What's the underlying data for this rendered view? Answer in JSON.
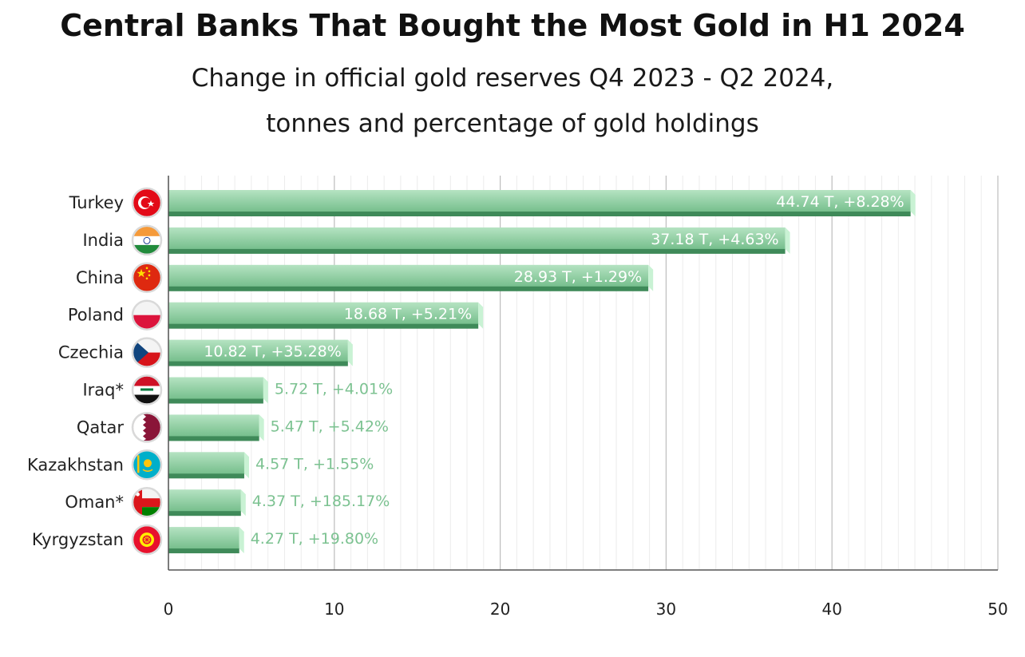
{
  "chart_data": {
    "type": "bar",
    "orientation": "horizontal",
    "title": "Central Banks That Bought the Most Gold in H1 2024",
    "subtitle_lines": [
      "Change in official gold reserves Q4 2023 - Q2 2024,",
      "tonnes and percentage of gold holdings"
    ],
    "categories": [
      "Turkey",
      "India",
      "China",
      "Poland",
      "Czechia",
      "Iraq*",
      "Qatar",
      "Kazakhstan",
      "Oman*",
      "Kyrgyzstan"
    ],
    "values": [
      44.74,
      37.18,
      28.93,
      18.68,
      10.82,
      5.72,
      5.47,
      4.57,
      4.37,
      4.27
    ],
    "data_labels": [
      "44.74 T, +8.28%",
      "37.18 T, +4.63%",
      "28.93 T, +1.29%",
      "18.68 T, +5.21%",
      "10.82 T, +35.28%",
      "5.72 T, +4.01%",
      "5.47 T, +5.42%",
      "4.57 T, +1.55%",
      "4.37 T, +185.17%",
      "4.27 T, +19.80%"
    ],
    "x_ticks": [
      0,
      10,
      20,
      30,
      40,
      50
    ],
    "xlim": [
      0,
      50
    ],
    "grid": true,
    "legend": "none",
    "colors": {
      "bar_top": "#a7dcb6",
      "bar_bottom": "#78c08e",
      "bar_edge": "#3f8a59",
      "bar_side": "#c9f2d4",
      "label_inside": "#ffffff",
      "label_outside": "#7cc291"
    },
    "flags": [
      {
        "country": "Turkey",
        "icon": "turkey-flag-icon"
      },
      {
        "country": "India",
        "icon": "india-flag-icon"
      },
      {
        "country": "China",
        "icon": "china-flag-icon"
      },
      {
        "country": "Poland",
        "icon": "poland-flag-icon"
      },
      {
        "country": "Czechia",
        "icon": "czechia-flag-icon"
      },
      {
        "country": "Iraq*",
        "icon": "iraq-flag-icon"
      },
      {
        "country": "Qatar",
        "icon": "qatar-flag-icon"
      },
      {
        "country": "Kazakhstan",
        "icon": "kazakhstan-flag-icon"
      },
      {
        "country": "Oman*",
        "icon": "oman-flag-icon"
      },
      {
        "country": "Kyrgyzstan",
        "icon": "kyrgyzstan-flag-icon"
      }
    ]
  }
}
